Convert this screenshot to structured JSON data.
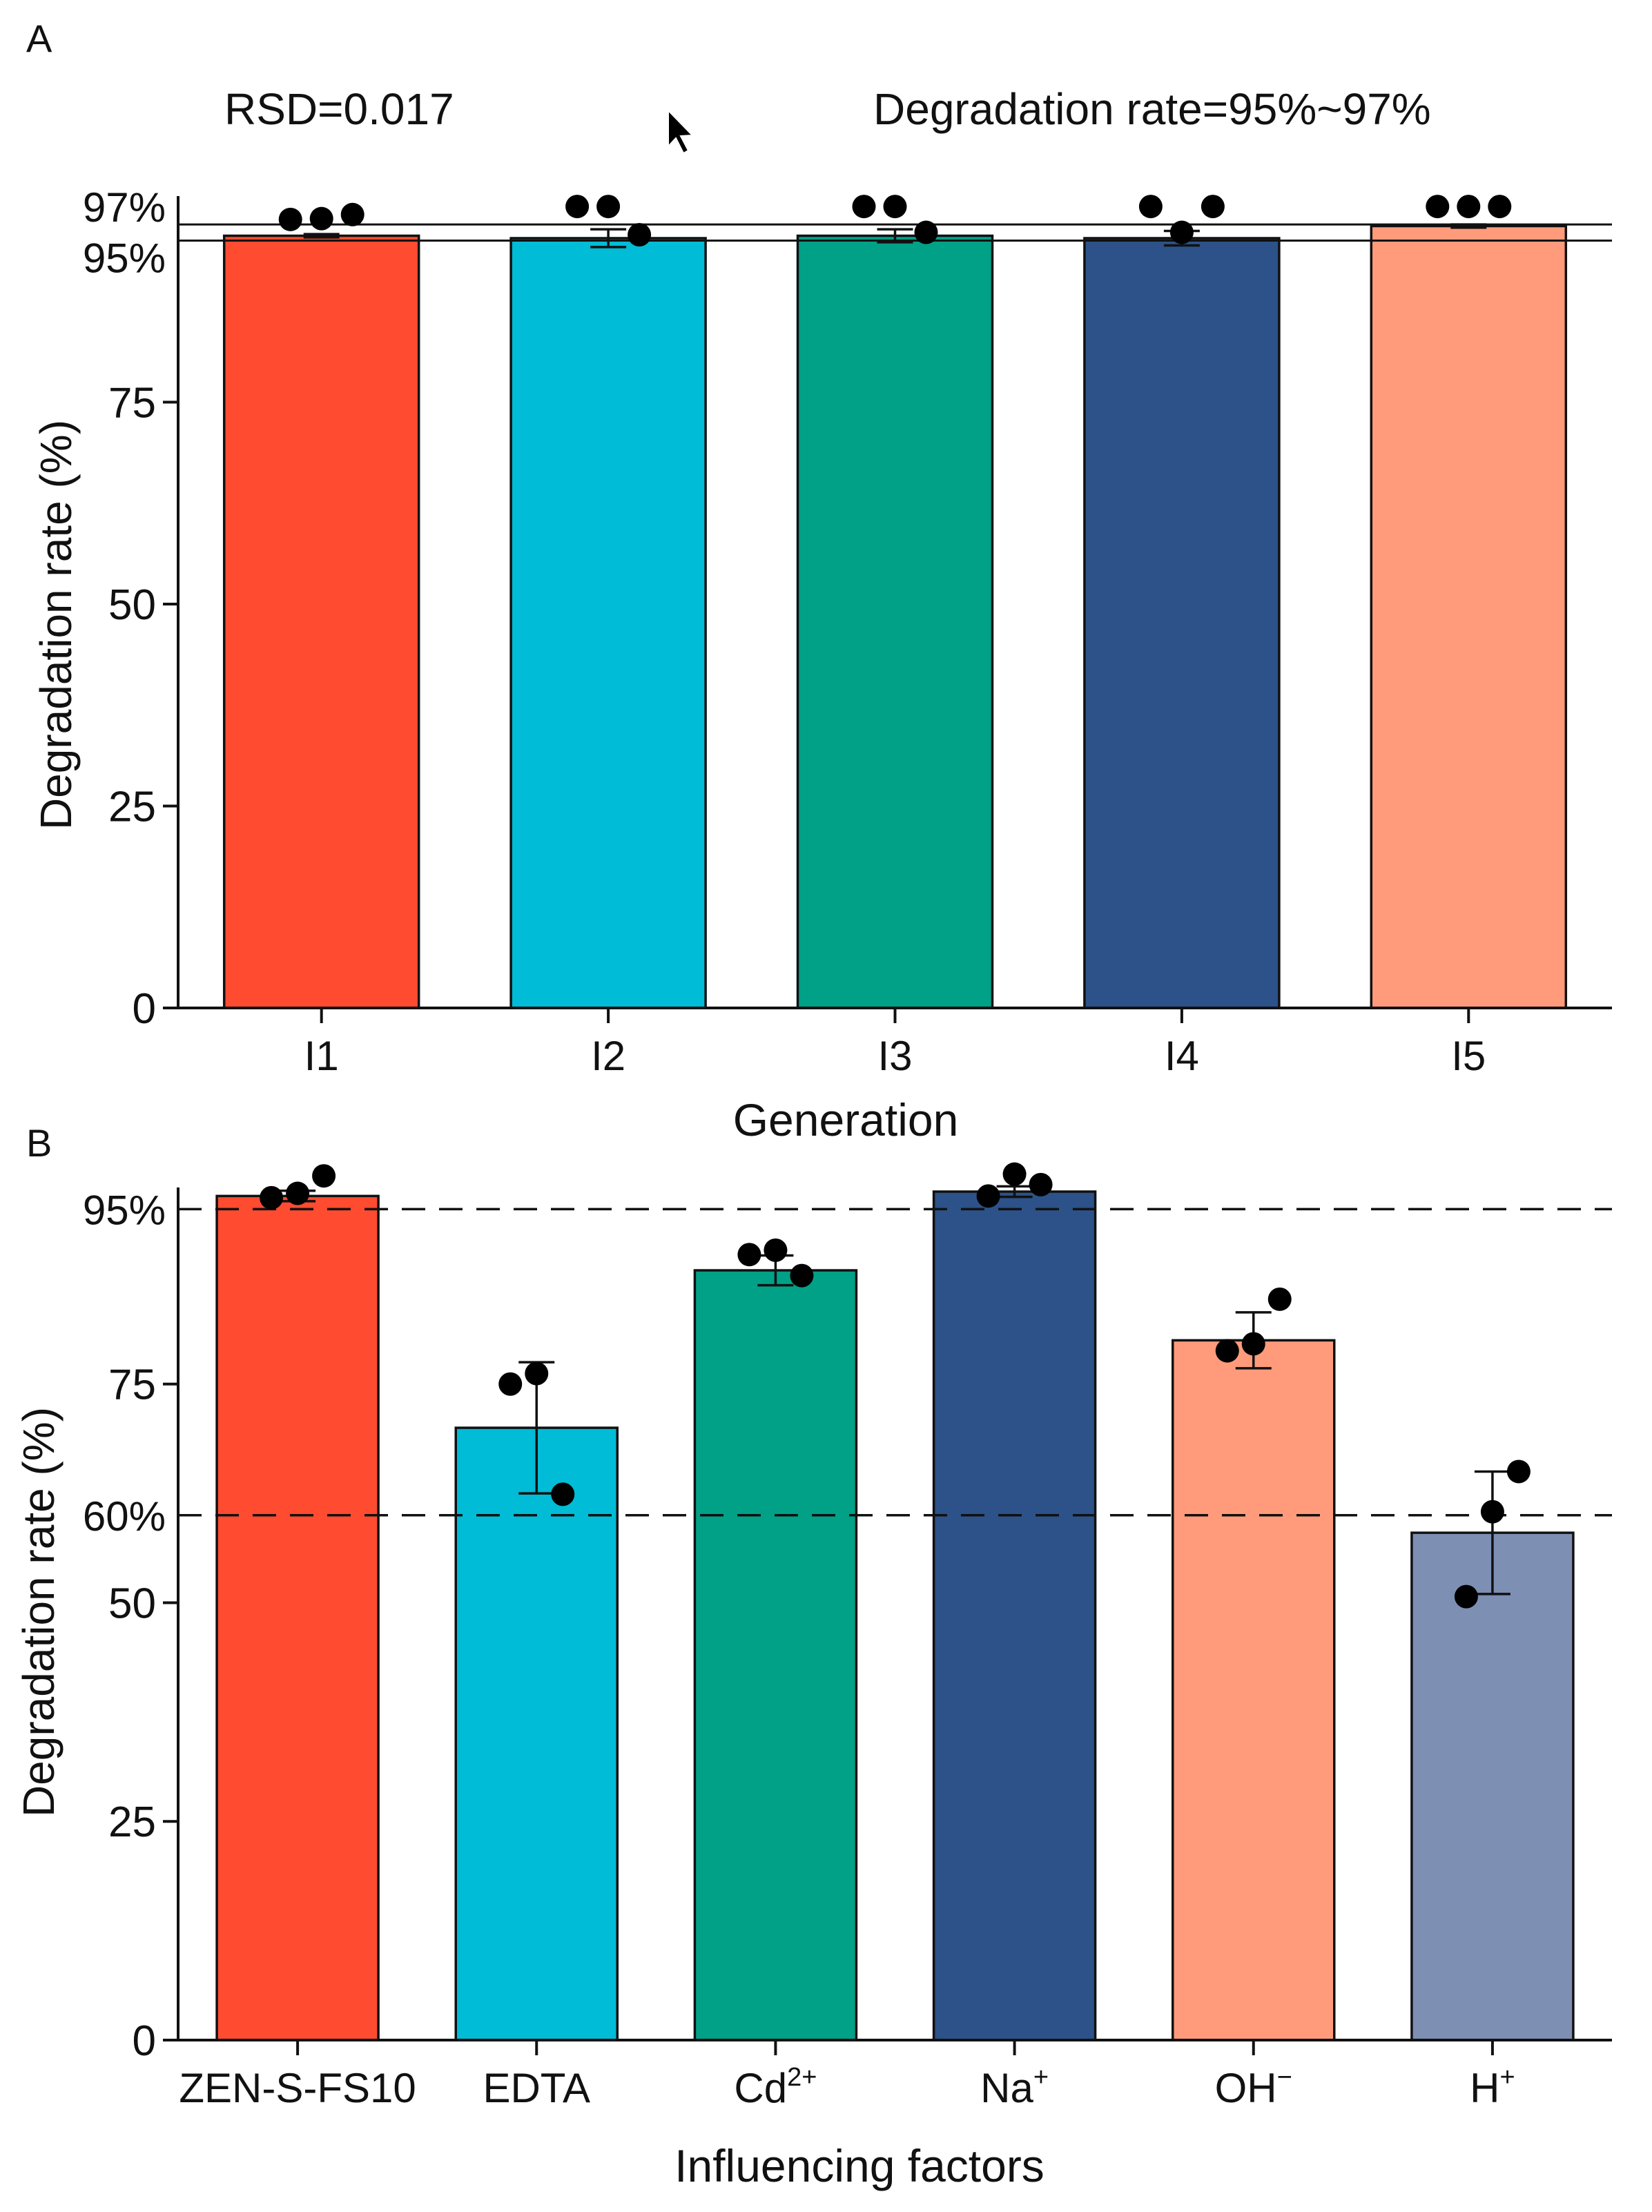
{
  "chart_data": [
    {
      "type": "bar",
      "panel_label": "A",
      "xlabel": "Generation",
      "ylabel": "Degradation rate (%)",
      "ylim": [
        0,
        100
      ],
      "yticks": [
        0,
        25,
        50,
        75
      ],
      "categories": [
        "I1",
        "I2",
        "I3",
        "I4",
        "I5"
      ],
      "values": [
        95.6,
        95.3,
        95.6,
        95.3,
        96.8
      ],
      "errors": [
        0.2,
        1.1,
        0.8,
        0.9,
        0.2
      ],
      "points": [
        [
          95.4,
          95.5,
          96.0
        ],
        [
          97.0,
          97.0,
          93.5
        ],
        [
          97.0,
          97.0,
          93.8
        ],
        [
          97.0,
          93.8,
          97.0
        ],
        [
          97.0,
          97.0,
          97.0
        ]
      ],
      "colors": [
        "#ff4b2f",
        "#00bcd6",
        "#00a187",
        "#2c5289",
        "#ff9b7b"
      ],
      "reference_lines": [
        {
          "value": 97,
          "label": "97%"
        },
        {
          "value": 95,
          "label": "95%"
        }
      ],
      "annotations": {
        "rsd": "RSD=0.017",
        "rate": "Degradation rate=95%~97%"
      }
    },
    {
      "type": "bar",
      "panel_label": "B",
      "xlabel": "Influencing factors",
      "ylabel": "Degradation rate (%)",
      "ylim": [
        0,
        97
      ],
      "yticks": [
        0,
        25,
        50,
        75
      ],
      "categories": [
        {
          "base": "ZEN-S-FS10",
          "sup": ""
        },
        {
          "base": "EDTA",
          "sup": ""
        },
        {
          "base": "Cd",
          "sup": "2+"
        },
        {
          "base": "Na",
          "sup": "+"
        },
        {
          "base": "OH",
          "sup": "−"
        },
        {
          "base": "H",
          "sup": "+"
        }
      ],
      "values": [
        96.5,
        70.0,
        88.0,
        97.0,
        80.0,
        58.0
      ],
      "errors": [
        0.6,
        7.5,
        1.7,
        0.6,
        3.2,
        7.0
      ],
      "points": [
        [
          96.3,
          96.8,
          98.8
        ],
        [
          75.0,
          76.2,
          62.4
        ],
        [
          89.8,
          90.3,
          87.4
        ],
        [
          96.5,
          99.0,
          97.8
        ],
        [
          78.8,
          79.6,
          84.7
        ],
        [
          50.7,
          60.4,
          65.0
        ]
      ],
      "colors": [
        "#ff4b2f",
        "#00bcd6",
        "#00a187",
        "#2c5289",
        "#ff9b7b",
        "#7e8fb4"
      ],
      "reference_lines": [
        {
          "value": 95,
          "label": "95%"
        },
        {
          "value": 60,
          "label": "60%"
        }
      ]
    }
  ]
}
